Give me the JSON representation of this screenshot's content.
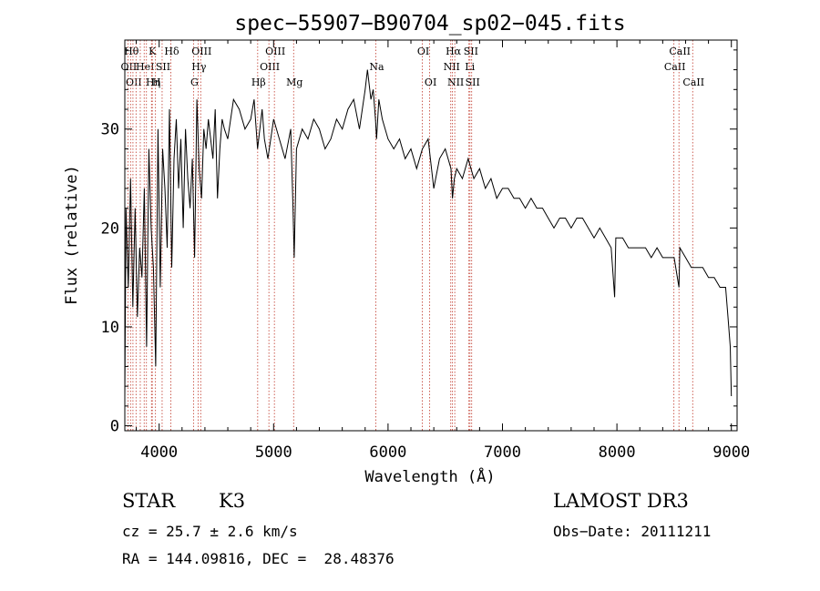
{
  "chart_data": {
    "type": "line",
    "title": "spec−55907−B90704_sp02−045.fits",
    "xlabel": "Wavelength (Å)",
    "ylabel": "Flux (relative)",
    "xlim": [
      3700,
      9050
    ],
    "ylim": [
      -0.5,
      39
    ],
    "xticks": [
      4000,
      5000,
      6000,
      7000,
      8000,
      9000
    ],
    "yticks": [
      0,
      10,
      20,
      30
    ],
    "grid": false,
    "series": [
      {
        "x": [
          3700,
          3710,
          3730,
          3750,
          3770,
          3790,
          3810,
          3830,
          3850,
          3870,
          3890,
          3910,
          3930,
          3950,
          3970,
          3990,
          4010,
          4030,
          4050,
          4070,
          4090,
          4110,
          4130,
          4150,
          4170,
          4190,
          4210,
          4230,
          4250,
          4270,
          4290,
          4310,
          4330,
          4350,
          4370,
          4390,
          4410,
          4430,
          4450,
          4470,
          4490,
          4510,
          4530,
          4550,
          4570,
          4600,
          4650,
          4700,
          4750,
          4800,
          4830,
          4860,
          4880,
          4900,
          4920,
          4950,
          5000,
          5050,
          5100,
          5150,
          5170,
          5180,
          5200,
          5250,
          5300,
          5350,
          5400,
          5450,
          5500,
          5550,
          5600,
          5650,
          5700,
          5750,
          5800,
          5820,
          5850,
          5870,
          5890,
          5900,
          5920,
          5950,
          6000,
          6050,
          6100,
          6150,
          6200,
          6250,
          6300,
          6350,
          6400,
          6450,
          6500,
          6550,
          6563,
          6580,
          6600,
          6650,
          6700,
          6750,
          6800,
          6850,
          6900,
          6950,
          7000,
          7050,
          7100,
          7150,
          7200,
          7250,
          7300,
          7350,
          7400,
          7450,
          7500,
          7550,
          7600,
          7650,
          7700,
          7750,
          7800,
          7850,
          7900,
          7950,
          7980,
          7990,
          8050,
          8100,
          8150,
          8200,
          8250,
          8300,
          8350,
          8400,
          8450,
          8500,
          8542,
          8550,
          8600,
          8650,
          8700,
          8750,
          8800,
          8850,
          8900,
          8950,
          8970,
          8990,
          9000
        ],
        "y": [
          3,
          22,
          14,
          25,
          12,
          22,
          11,
          18,
          15,
          24,
          8,
          28,
          20,
          16,
          6,
          30,
          14,
          28,
          24,
          18,
          32,
          16,
          27,
          31,
          24,
          29,
          20,
          30,
          25,
          22,
          27,
          17,
          33,
          26,
          23,
          30,
          28,
          31,
          29,
          27,
          32,
          23,
          28,
          31,
          30,
          29,
          33,
          32,
          30,
          31,
          33,
          28,
          30,
          32,
          29,
          27,
          31,
          29,
          27,
          30,
          22,
          17,
          28,
          30,
          29,
          31,
          30,
          28,
          29,
          31,
          30,
          32,
          33,
          30,
          34,
          36,
          33,
          34,
          31,
          29,
          33,
          31,
          29,
          28,
          29,
          27,
          28,
          26,
          28,
          29,
          24,
          27,
          28,
          26,
          23,
          25,
          26,
          25,
          27,
          25,
          26,
          24,
          25,
          23,
          24,
          24,
          23,
          23,
          22,
          23,
          22,
          22,
          21,
          20,
          21,
          21,
          20,
          21,
          21,
          20,
          19,
          20,
          19,
          18,
          13,
          19,
          19,
          18,
          18,
          18,
          18,
          17,
          18,
          17,
          17,
          17,
          14,
          18,
          17,
          16,
          16,
          16,
          15,
          15,
          14,
          14,
          11,
          8,
          3
        ]
      }
    ],
    "line_marks": [
      {
        "x": 3727,
        "label": "OII",
        "row": 2
      },
      {
        "x": 3750,
        "label": "Hθ",
        "row": 1
      },
      {
        "x": 3771,
        "label": "OII",
        "row": 3
      },
      {
        "x": 3798,
        "label": "",
        "row": 0
      },
      {
        "x": 3835,
        "label": "",
        "row": 0
      },
      {
        "x": 3869,
        "label": "HeI",
        "row": 2
      },
      {
        "x": 3889,
        "label": "",
        "row": 0
      },
      {
        "x": 3933,
        "label": "K",
        "row": 1
      },
      {
        "x": 3940,
        "label": "Hη",
        "row": 3
      },
      {
        "x": 3968,
        "label": "H",
        "row": 3
      },
      {
        "x": 4026,
        "label": "SII",
        "row": 2
      },
      {
        "x": 4102,
        "label": "Hδ",
        "row": 1
      },
      {
        "x": 4300,
        "label": "G",
        "row": 3
      },
      {
        "x": 4340,
        "label": "Hγ",
        "row": 2
      },
      {
        "x": 4363,
        "label": "OIII",
        "row": 1
      },
      {
        "x": 4861,
        "label": "Hβ",
        "row": 3
      },
      {
        "x": 4959,
        "label": "OIII",
        "row": 2
      },
      {
        "x": 5007,
        "label": "OIII",
        "row": 1
      },
      {
        "x": 5175,
        "label": "Mg",
        "row": 3
      },
      {
        "x": 5893,
        "label": "Na",
        "row": 2
      },
      {
        "x": 6300,
        "label": "OI",
        "row": 1
      },
      {
        "x": 6364,
        "label": "OI",
        "row": 3
      },
      {
        "x": 6548,
        "label": "NII",
        "row": 2
      },
      {
        "x": 6563,
        "label": "Hα",
        "row": 1
      },
      {
        "x": 6583,
        "label": "NII",
        "row": 3
      },
      {
        "x": 6707,
        "label": "Li",
        "row": 2
      },
      {
        "x": 6716,
        "label": "SII",
        "row": 1
      },
      {
        "x": 6731,
        "label": "SII",
        "row": 3
      },
      {
        "x": 8498,
        "label": "CaII",
        "row": 2
      },
      {
        "x": 8542,
        "label": "CaII",
        "row": 1
      },
      {
        "x": 8662,
        "label": "CaII",
        "row": 3
      }
    ]
  },
  "info": {
    "object_class": "STAR",
    "subclass": "K3",
    "survey": "LAMOST DR3",
    "redshift": "cz = 25.7 ± 2.6 km/s",
    "obs_date": "Obs−Date: 20111211",
    "coords": "RA = 144.09816, DEC =  28.48376"
  }
}
